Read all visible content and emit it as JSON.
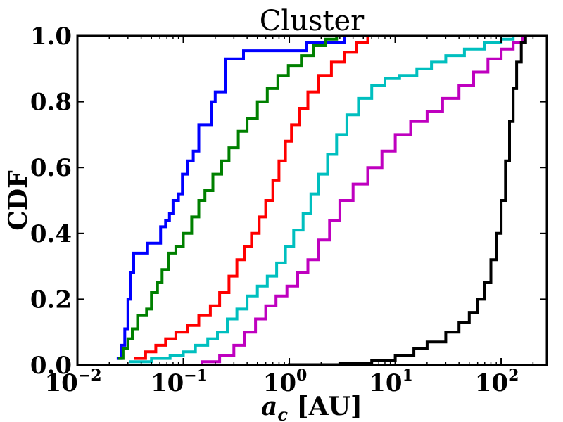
{
  "chart_data": {
    "type": "line",
    "title": "Cluster",
    "xlabel": "a_c [AU]",
    "ylabel": "CDF",
    "xscale": "log",
    "xlim": [
      0.01,
      270
    ],
    "ylim": [
      0.0,
      1.0
    ],
    "grid": false,
    "x_ticks": [
      {
        "base": "10",
        "exp": "−2",
        "value": 0.01
      },
      {
        "base": "10",
        "exp": "−1",
        "value": 0.1
      },
      {
        "base": "10",
        "exp": "0",
        "value": 1
      },
      {
        "base": "10",
        "exp": "1",
        "value": 10
      },
      {
        "base": "10",
        "exp": "2",
        "value": 100
      }
    ],
    "y_ticks": [
      "0.0",
      "0.2",
      "0.4",
      "0.6",
      "0.8",
      "1.0"
    ],
    "y_tick_values": [
      0.0,
      0.2,
      0.4,
      0.6,
      0.8,
      1.0
    ],
    "series": [
      {
        "name": "blue",
        "color": "#0000ff",
        "points": [
          [
            0.0235,
            0.02
          ],
          [
            0.026,
            0.06
          ],
          [
            0.028,
            0.11
          ],
          [
            0.03,
            0.2
          ],
          [
            0.032,
            0.28
          ],
          [
            0.034,
            0.34
          ],
          [
            0.044,
            0.34
          ],
          [
            0.046,
            0.37
          ],
          [
            0.057,
            0.37
          ],
          [
            0.061,
            0.42
          ],
          [
            0.068,
            0.44
          ],
          [
            0.074,
            0.46
          ],
          [
            0.08,
            0.5
          ],
          [
            0.09,
            0.52
          ],
          [
            0.098,
            0.58
          ],
          [
            0.11,
            0.62
          ],
          [
            0.124,
            0.65
          ],
          [
            0.14,
            0.73
          ],
          [
            0.17,
            0.73
          ],
          [
            0.183,
            0.8
          ],
          [
            0.2,
            0.83
          ],
          [
            0.24,
            0.83
          ],
          [
            0.252,
            0.93
          ],
          [
            0.35,
            0.93
          ],
          [
            0.37,
            0.955
          ],
          [
            1.4,
            0.955
          ],
          [
            1.45,
            0.98
          ],
          [
            3.2,
            0.98
          ],
          [
            3.3,
            1.0
          ]
        ]
      },
      {
        "name": "green",
        "color": "#008000",
        "points": [
          [
            0.024,
            0.02
          ],
          [
            0.027,
            0.05
          ],
          [
            0.03,
            0.08
          ],
          [
            0.033,
            0.11
          ],
          [
            0.037,
            0.15
          ],
          [
            0.045,
            0.17
          ],
          [
            0.05,
            0.22
          ],
          [
            0.057,
            0.25
          ],
          [
            0.063,
            0.29
          ],
          [
            0.072,
            0.34
          ],
          [
            0.085,
            0.36
          ],
          [
            0.1,
            0.4
          ],
          [
            0.12,
            0.45
          ],
          [
            0.14,
            0.5
          ],
          [
            0.16,
            0.53
          ],
          [
            0.19,
            0.58
          ],
          [
            0.23,
            0.62
          ],
          [
            0.27,
            0.66
          ],
          [
            0.33,
            0.71
          ],
          [
            0.4,
            0.75
          ],
          [
            0.5,
            0.8
          ],
          [
            0.62,
            0.84
          ],
          [
            0.78,
            0.88
          ],
          [
            0.98,
            0.91
          ],
          [
            1.3,
            0.94
          ],
          [
            1.7,
            0.97
          ],
          [
            2.2,
            0.99
          ],
          [
            2.8,
            1.0
          ]
        ]
      },
      {
        "name": "red",
        "color": "#ff0000",
        "points": [
          [
            0.034,
            0.02
          ],
          [
            0.044,
            0.04
          ],
          [
            0.055,
            0.06
          ],
          [
            0.068,
            0.08
          ],
          [
            0.085,
            0.1
          ],
          [
            0.11,
            0.12
          ],
          [
            0.14,
            0.15
          ],
          [
            0.18,
            0.18
          ],
          [
            0.22,
            0.22
          ],
          [
            0.27,
            0.27
          ],
          [
            0.32,
            0.32
          ],
          [
            0.38,
            0.36
          ],
          [
            0.44,
            0.4
          ],
          [
            0.52,
            0.45
          ],
          [
            0.6,
            0.5
          ],
          [
            0.7,
            0.56
          ],
          [
            0.8,
            0.62
          ],
          [
            0.92,
            0.68
          ],
          [
            1.05,
            0.73
          ],
          [
            1.25,
            0.78
          ],
          [
            1.5,
            0.83
          ],
          [
            1.9,
            0.88
          ],
          [
            2.5,
            0.92
          ],
          [
            3.3,
            0.95
          ],
          [
            4.3,
            0.98
          ],
          [
            5.5,
            1.0
          ]
        ]
      },
      {
        "name": "cyan",
        "color": "#00bfbf",
        "points": [
          [
            0.031,
            0.01
          ],
          [
            0.05,
            0.02
          ],
          [
            0.075,
            0.03
          ],
          [
            0.1,
            0.04
          ],
          [
            0.13,
            0.06
          ],
          [
            0.17,
            0.08
          ],
          [
            0.21,
            0.1
          ],
          [
            0.26,
            0.14
          ],
          [
            0.32,
            0.17
          ],
          [
            0.4,
            0.21
          ],
          [
            0.5,
            0.24
          ],
          [
            0.62,
            0.27
          ],
          [
            0.76,
            0.31
          ],
          [
            0.92,
            0.36
          ],
          [
            1.1,
            0.41
          ],
          [
            1.35,
            0.46
          ],
          [
            1.6,
            0.52
          ],
          [
            1.9,
            0.58
          ],
          [
            2.3,
            0.64
          ],
          [
            2.8,
            0.7
          ],
          [
            3.5,
            0.76
          ],
          [
            4.5,
            0.81
          ],
          [
            6,
            0.85
          ],
          [
            8,
            0.87
          ],
          [
            11,
            0.88
          ],
          [
            16,
            0.9
          ],
          [
            22,
            0.92
          ],
          [
            30,
            0.94
          ],
          [
            45,
            0.96
          ],
          [
            70,
            0.98
          ],
          [
            100,
            0.99
          ],
          [
            130,
            1.0
          ]
        ]
      },
      {
        "name": "magenta",
        "color": "#bf00bf",
        "points": [
          [
            0.11,
            0.0
          ],
          [
            0.15,
            0.01
          ],
          [
            0.22,
            0.03
          ],
          [
            0.3,
            0.06
          ],
          [
            0.38,
            0.1
          ],
          [
            0.48,
            0.14
          ],
          [
            0.6,
            0.18
          ],
          [
            0.75,
            0.21
          ],
          [
            0.95,
            0.24
          ],
          [
            1.2,
            0.28
          ],
          [
            1.5,
            0.32
          ],
          [
            1.9,
            0.38
          ],
          [
            2.4,
            0.44
          ],
          [
            3.0,
            0.5
          ],
          [
            4.0,
            0.55
          ],
          [
            5.5,
            0.6
          ],
          [
            7.5,
            0.65
          ],
          [
            10,
            0.7
          ],
          [
            14,
            0.74
          ],
          [
            20,
            0.77
          ],
          [
            28,
            0.81
          ],
          [
            40,
            0.85
          ],
          [
            55,
            0.89
          ],
          [
            75,
            0.93
          ],
          [
            100,
            0.96
          ],
          [
            130,
            0.98
          ],
          [
            160,
            1.0
          ]
        ]
      },
      {
        "name": "black",
        "color": "#000000",
        "points": [
          [
            0.22,
            0.0
          ],
          [
            1,
            0.001
          ],
          [
            3,
            0.005
          ],
          [
            6,
            0.015
          ],
          [
            10,
            0.03
          ],
          [
            15,
            0.05
          ],
          [
            20,
            0.07
          ],
          [
            30,
            0.1
          ],
          [
            40,
            0.13
          ],
          [
            50,
            0.16
          ],
          [
            60,
            0.2
          ],
          [
            70,
            0.25
          ],
          [
            80,
            0.32
          ],
          [
            90,
            0.4
          ],
          [
            100,
            0.5
          ],
          [
            110,
            0.62
          ],
          [
            120,
            0.74
          ],
          [
            130,
            0.84
          ],
          [
            140,
            0.92
          ],
          [
            155,
            0.98
          ],
          [
            170,
            1.0
          ]
        ]
      }
    ]
  }
}
